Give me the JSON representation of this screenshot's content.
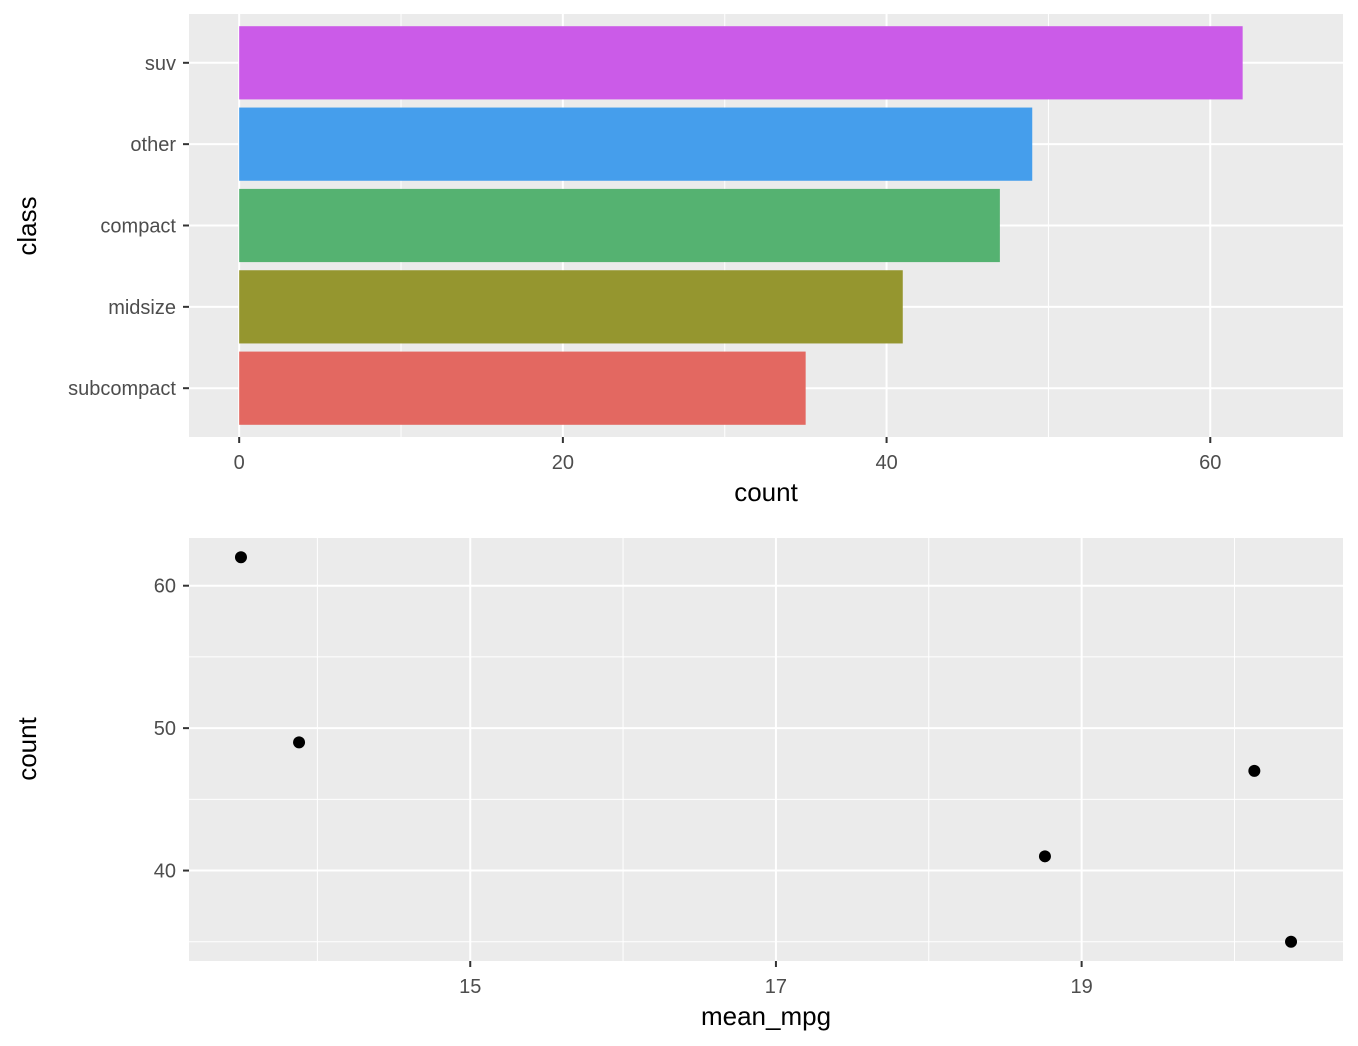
{
  "chart_data": [
    {
      "type": "bar",
      "orientation": "horizontal",
      "categories": [
        "subcompact",
        "midsize",
        "compact",
        "other",
        "suv"
      ],
      "values": [
        35,
        41,
        47,
        49,
        62
      ],
      "colors": [
        "#E36861",
        "#95962F",
        "#55B271",
        "#459EEC",
        "#CB5BE8"
      ],
      "xlabel": "count",
      "ylabel": "class",
      "xlim": [
        -3.1,
        68.2
      ],
      "xticks": [
        0,
        20,
        40,
        60
      ],
      "grid": true,
      "legend": "none"
    },
    {
      "type": "scatter",
      "x": [
        13.5,
        13.88,
        18.76,
        20.13,
        20.37
      ],
      "y": [
        62,
        49,
        41,
        47,
        35
      ],
      "xlabel": "mean_mpg",
      "ylabel": "count",
      "xlim": [
        13.16,
        20.71
      ],
      "ylim": [
        33.65,
        63.35
      ],
      "xticks": [
        15,
        17,
        19
      ],
      "yticks": [
        40,
        50,
        60
      ],
      "point_color": "#000000",
      "grid": true,
      "legend": "none"
    }
  ]
}
